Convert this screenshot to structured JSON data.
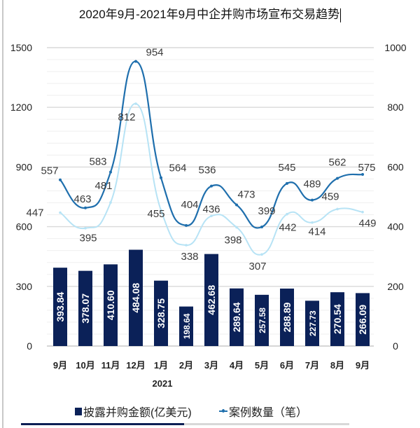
{
  "title": "2020年9月-2021年9月中企并购市场宣布交易趋势",
  "legend": {
    "bar_label": "披露并购金额(亿美元)",
    "line_label": "案例数量（笔）"
  },
  "colors": {
    "bar": "#0b2158",
    "line_dark": "#1f6fad",
    "line_light": "#b7e3f5",
    "grid": "#e6e6e6"
  },
  "chart_data": {
    "type": "bar+line",
    "title": "2020年9月-2021年9月中企并购市场宣布交易趋势",
    "categories": [
      "9月",
      "10月",
      "11月",
      "12月",
      "1月",
      "2月",
      "3月",
      "4月",
      "5月",
      "6月",
      "7月",
      "8月",
      "9月"
    ],
    "year_label": "2021",
    "left_axis": {
      "range": [
        0,
        1500
      ],
      "ticks": [
        "0",
        "300",
        "600",
        "900",
        "1200",
        "1500"
      ]
    },
    "right_axis": {
      "range": [
        0,
        1000
      ],
      "ticks": [
        "0",
        "200",
        "400",
        "600",
        "800",
        "1000"
      ]
    },
    "grid": true,
    "legend_position": "bottom",
    "series": [
      {
        "name": "披露并购金额(亿美元)",
        "type": "bar",
        "axis": "left",
        "values": [
          393.84,
          378.07,
          410.6,
          484.08,
          328.75,
          198.64,
          462.68,
          289.64,
          257.58,
          288.89,
          227.73,
          270.54,
          266.09
        ],
        "labels": [
          "393.84",
          "378.07",
          "410.60",
          "484.08",
          "328.75",
          "198.64",
          "462.68",
          "289.64",
          "257.58",
          "288.89",
          "227.73",
          "270.54",
          "266.09"
        ]
      },
      {
        "name": "案例数量（笔）",
        "type": "line",
        "axis": "right",
        "values": [
          557,
          463,
          583,
          954,
          564,
          404,
          536,
          473,
          399,
          545,
          489,
          562,
          575
        ]
      },
      {
        "type": "line",
        "axis": "right",
        "values": [
          447,
          395,
          481,
          812,
          455,
          338,
          436,
          398,
          307,
          442,
          414,
          459,
          449
        ]
      }
    ]
  }
}
